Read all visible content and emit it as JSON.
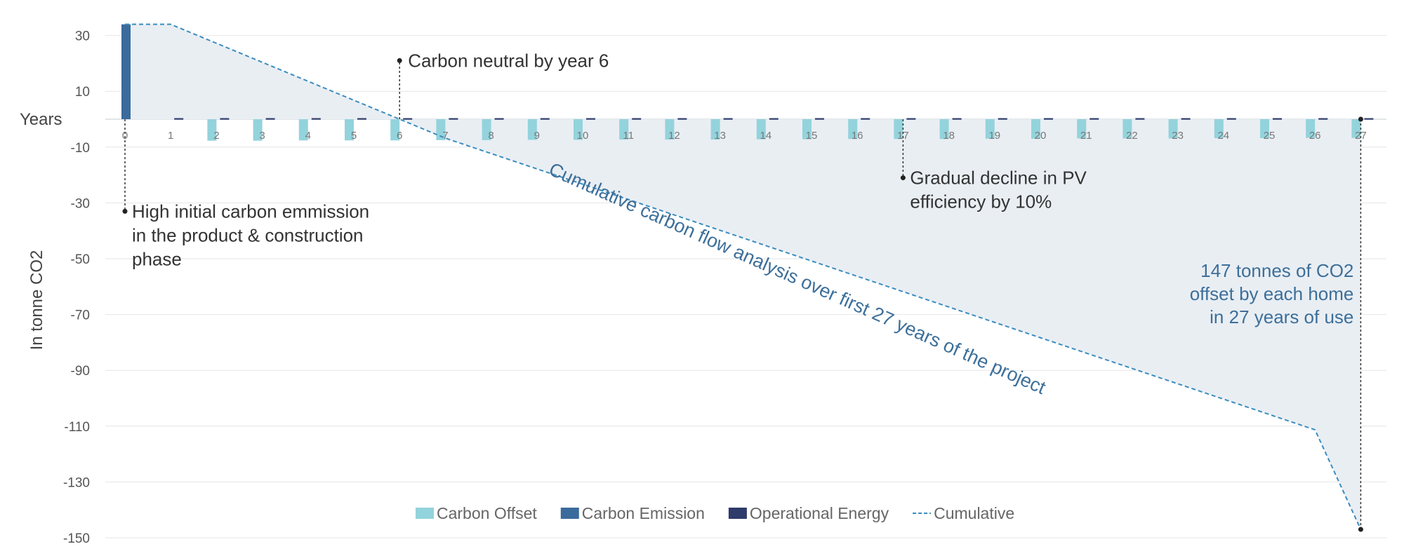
{
  "chart_data": {
    "type": "bar",
    "title": "Cumulative carbon flow analysis over first 27 years of the project",
    "xlabel": "Years",
    "ylabel": "In tonne CO2",
    "ylim": [
      -150,
      30
    ],
    "yticks": [
      30,
      10,
      -10,
      -30,
      -50,
      -70,
      -90,
      -110,
      -130,
      -150
    ],
    "grid": true,
    "categories": [
      "0",
      "1",
      "2",
      "3",
      "4",
      "5",
      "6",
      "7",
      "8",
      "9",
      "10",
      "11",
      "12",
      "13",
      "14",
      "15",
      "16",
      "17",
      "18",
      "19",
      "20",
      "21",
      "22",
      "23",
      "24",
      "25",
      "26",
      "27"
    ],
    "series": [
      {
        "name": "Carbon Offset",
        "kind": "bar",
        "color": "#93d3dc",
        "values": [
          0,
          0,
          -7.7,
          -7.7,
          -7.6,
          -7.6,
          -7.6,
          -7.5,
          -7.5,
          -7.4,
          -7.4,
          -7.3,
          -7.3,
          -7.3,
          -7.2,
          -7.2,
          -7.1,
          -7.1,
          -7.1,
          -7.0,
          -7.0,
          -6.9,
          -6.9,
          -6.9,
          -6.8,
          -6.8,
          -6.7,
          -6.7
        ]
      },
      {
        "name": "Carbon Emission",
        "kind": "bar",
        "color": "#3a6b9c",
        "values": [
          34,
          0,
          0,
          0,
          0,
          0,
          0,
          0,
          0,
          0,
          0,
          0,
          0,
          0,
          0,
          0,
          0,
          0,
          0,
          0,
          0,
          0,
          0,
          0,
          0,
          0,
          0,
          0
        ]
      },
      {
        "name": "Operational Energy",
        "kind": "bar",
        "color": "#2e3b6b",
        "values": [
          0,
          0.3,
          0.3,
          0.3,
          0.3,
          0.3,
          0.3,
          0.3,
          0.3,
          0.3,
          0.3,
          0.3,
          0.3,
          0.3,
          0.3,
          0.3,
          0.3,
          0.3,
          0.3,
          0.3,
          0.3,
          0.3,
          0.3,
          0.3,
          0.3,
          0.3,
          0.3,
          0.3
        ]
      },
      {
        "name": "Cumulative",
        "kind": "line",
        "style": "dashed",
        "color": "#3a8dbf",
        "values": [
          34,
          34,
          27.2,
          20.4,
          13.6,
          6.8,
          0,
          -6.8,
          -12.3,
          -17.8,
          -23.3,
          -28.8,
          -34.3,
          -39.8,
          -45.3,
          -50.8,
          -56.3,
          -61.8,
          -67.3,
          -72.8,
          -78.3,
          -83.8,
          -89.3,
          -94.8,
          -100.3,
          -105.8,
          -111.3,
          -147
        ]
      }
    ],
    "annotations": [
      {
        "id": "high-initial",
        "x": 0,
        "y": -33,
        "lines": [
          "High initial carbon emmission",
          "in the product & construction",
          "phase"
        ]
      },
      {
        "id": "neutral",
        "x": 6,
        "y": 21,
        "lines": [
          "Carbon neutral by year 6"
        ]
      },
      {
        "id": "pv-decline",
        "x": 17,
        "y": -21,
        "lines": [
          "Gradual decline in PV",
          "efficiency by 10%"
        ]
      },
      {
        "id": "offset-total",
        "x": 27,
        "y": -147,
        "lines": [
          "147 tonnes of CO2",
          "offset by each home",
          "in 27 years of use"
        ]
      }
    ]
  },
  "legend": [
    {
      "label": "Carbon Offset",
      "color": "#93d3dc",
      "kind": "box"
    },
    {
      "label": "Carbon Emission",
      "color": "#3a6b9c",
      "kind": "box"
    },
    {
      "label": "Operational Energy",
      "color": "#2e3b6b",
      "kind": "box"
    },
    {
      "label": "Cumulative",
      "color": "#3a8dbf",
      "kind": "dash"
    }
  ],
  "colors": {
    "area_fill": "#e9eef3",
    "grid": "#e6e6e6",
    "annotation_blue": "#3d6f99"
  }
}
